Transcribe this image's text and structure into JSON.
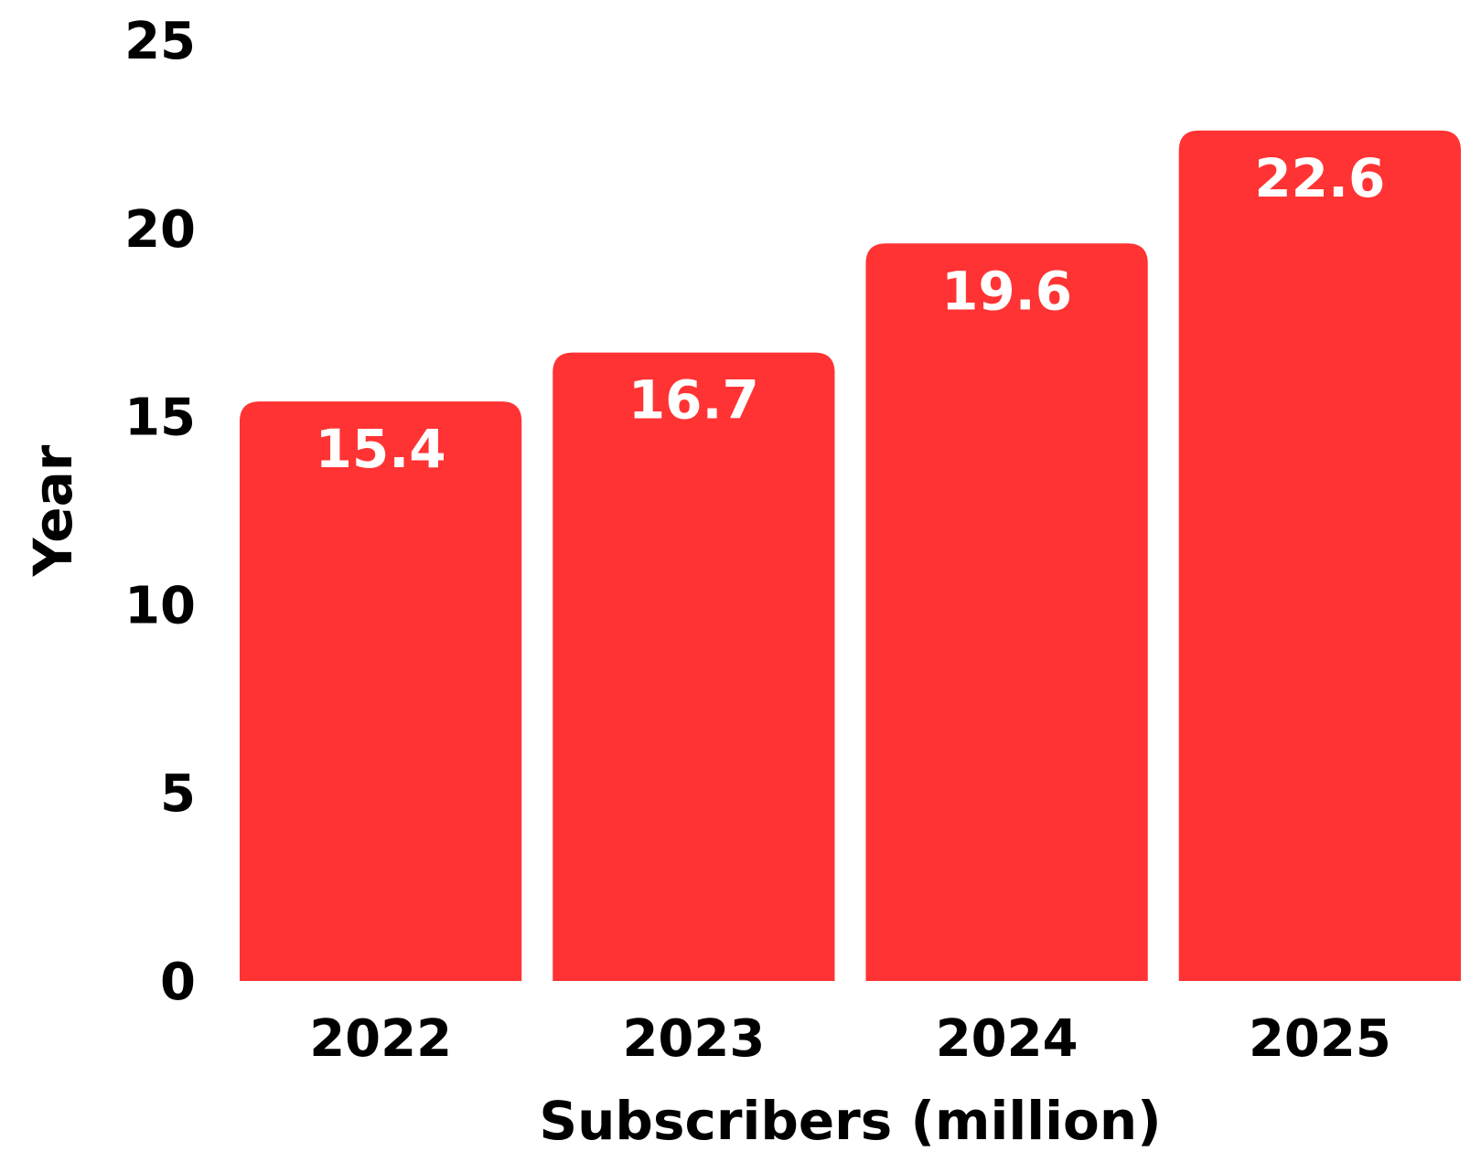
{
  "chart_data": {
    "type": "bar",
    "categories": [
      "2022",
      "2023",
      "2024",
      "2025"
    ],
    "values": [
      15.4,
      16.7,
      19.6,
      22.6
    ],
    "data_labels": [
      "15.4",
      "16.7",
      "19.6",
      "22.6"
    ],
    "xlabel": "Subscribers (million)",
    "ylabel": "Year",
    "ylim": [
      0,
      25
    ],
    "yticks": [
      0,
      5,
      10,
      15,
      20,
      25
    ],
    "ytick_labels": [
      "0",
      "5",
      "10",
      "15",
      "20",
      "25"
    ],
    "grid": false,
    "legend": "none",
    "colors": {
      "bar": "#ff3333",
      "data_label": "#ffffff",
      "text": "#000000",
      "background": "#ffffff"
    }
  }
}
